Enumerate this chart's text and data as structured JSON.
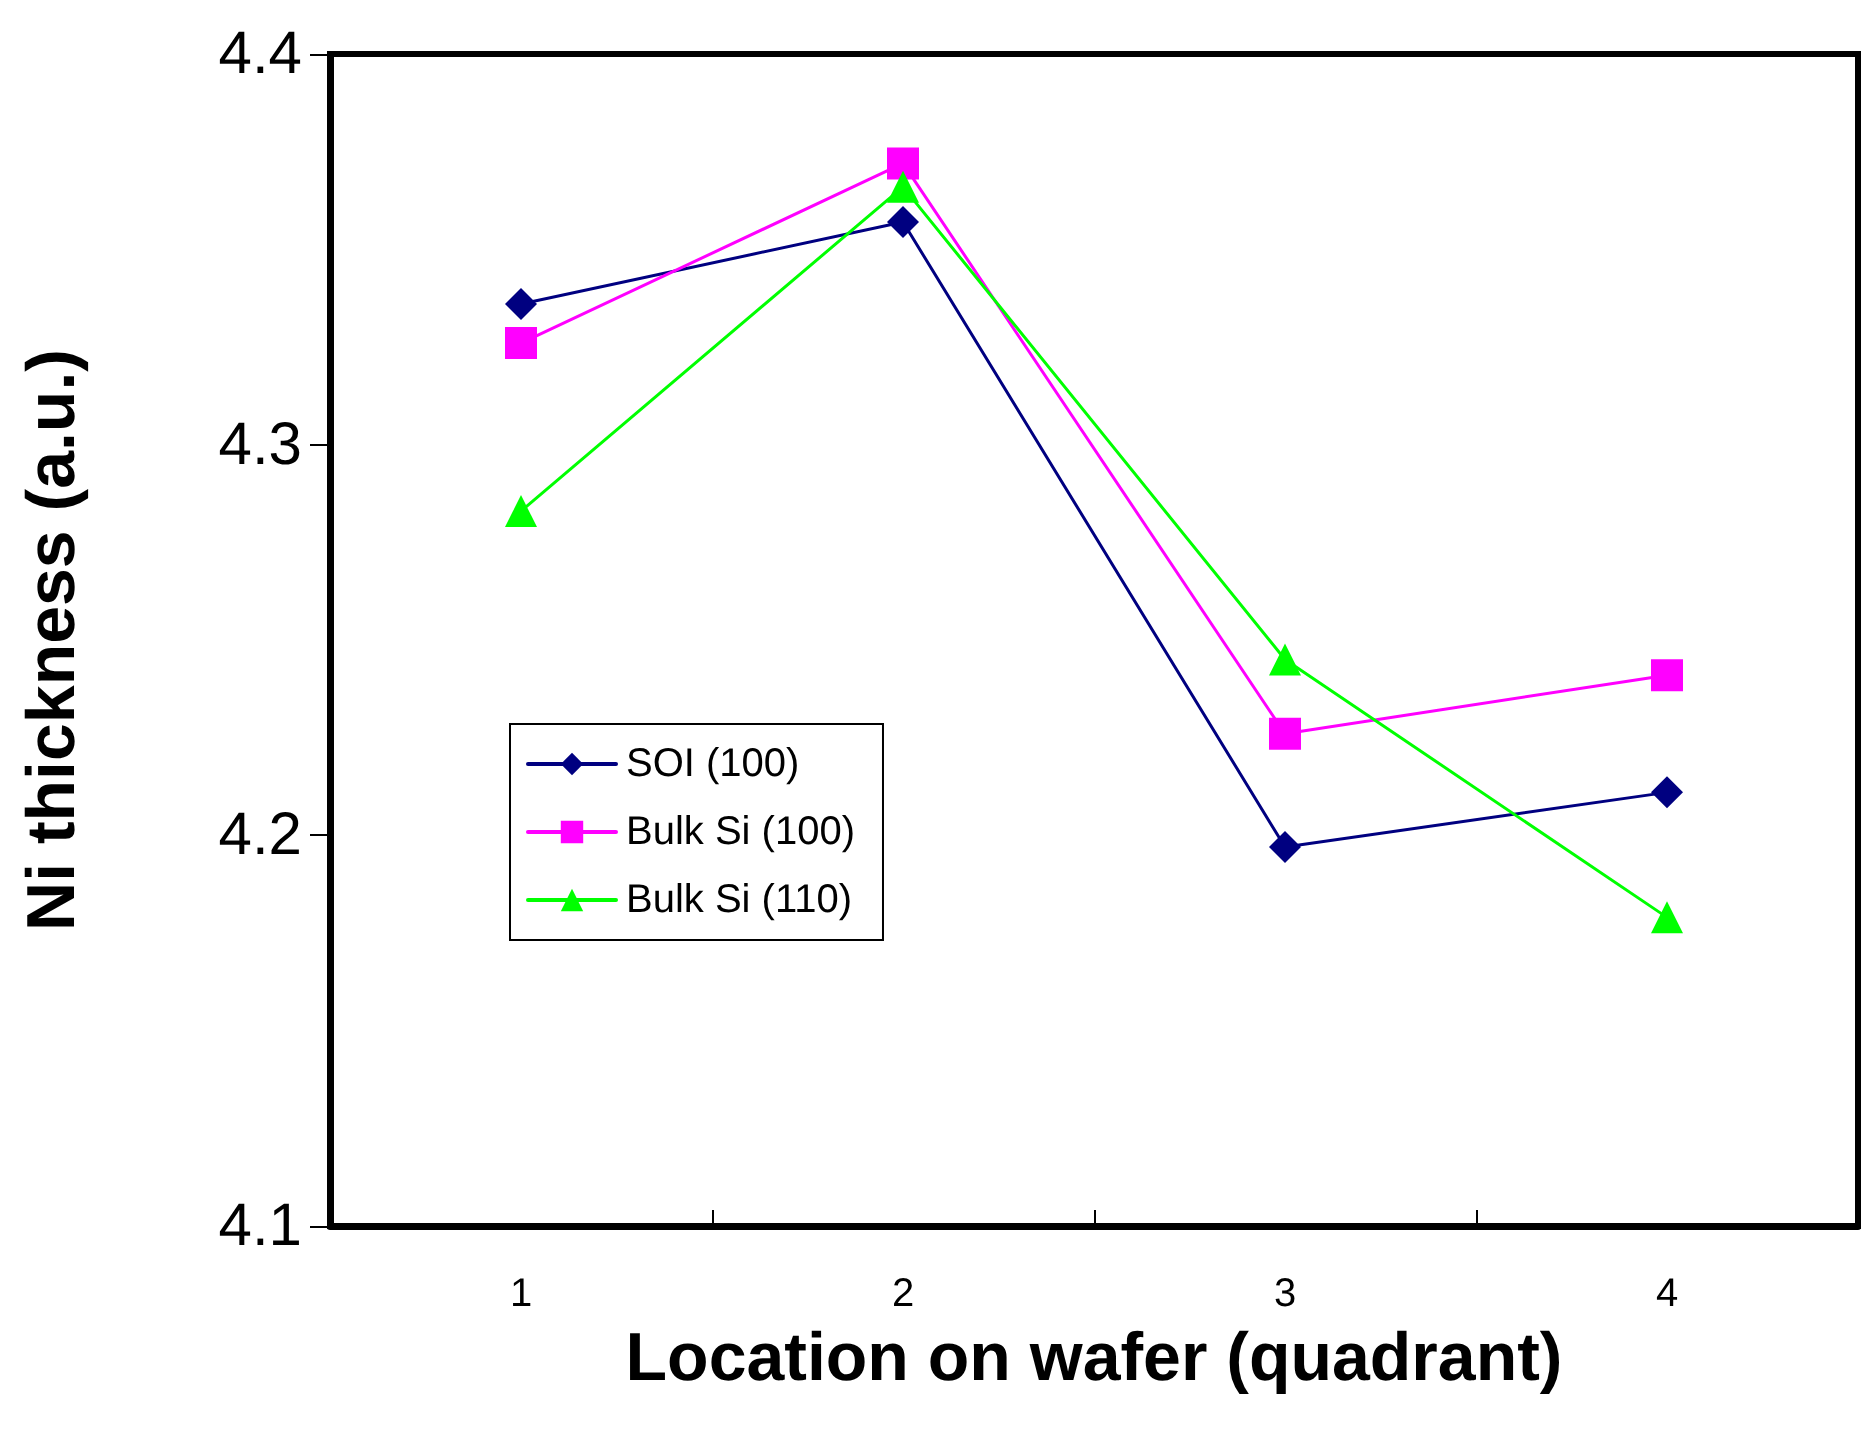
{
  "chart_data": {
    "type": "line",
    "xlabel": "Location on wafer (quadrant)",
    "ylabel": "Ni thickness (a.u.)",
    "categories": [
      "1",
      "2",
      "3",
      "4"
    ],
    "series": [
      {
        "name": "SOI (100)",
        "color": "#000080",
        "marker": "diamond",
        "values": [
          4.336,
          4.357,
          4.197,
          4.211
        ]
      },
      {
        "name": "Bulk Si (100)",
        "color": "#ff00ff",
        "marker": "square",
        "values": [
          4.326,
          4.372,
          4.226,
          4.241
        ]
      },
      {
        "name": "Bulk Si (110)",
        "color": "#00ff00",
        "marker": "triangle",
        "values": [
          4.283,
          4.366,
          4.245,
          4.179
        ]
      }
    ],
    "ylim": [
      4.1,
      4.4
    ],
    "yticks": [
      4.1,
      4.2,
      4.3,
      4.4
    ],
    "grid": false,
    "legend": "left"
  }
}
